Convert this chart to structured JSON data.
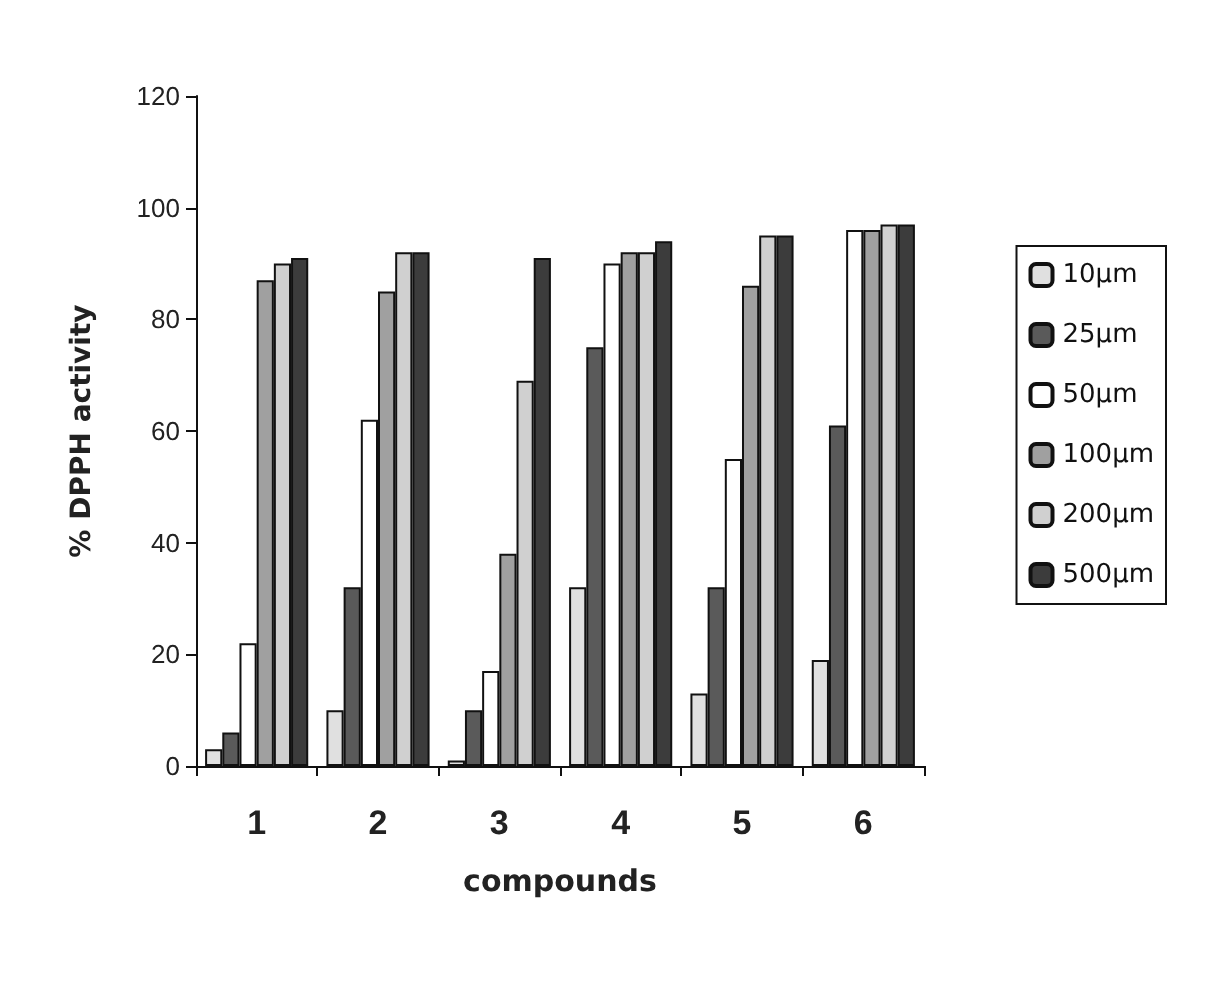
{
  "chart_data": {
    "type": "bar",
    "xlabel": "compounds",
    "ylabel": "% DPPH activity",
    "categories": [
      "1",
      "2",
      "3",
      "4",
      "5",
      "6"
    ],
    "series": [
      {
        "name": "10µm",
        "color": "#e0e0e0",
        "values": [
          3,
          10,
          1,
          32,
          13,
          19
        ]
      },
      {
        "name": "25µm",
        "color": "#5a5a5a",
        "values": [
          6,
          32,
          10,
          75,
          32,
          61
        ]
      },
      {
        "name": "50µm",
        "color": "#ffffff",
        "values": [
          22,
          62,
          17,
          90,
          55,
          96
        ]
      },
      {
        "name": "100µm",
        "color": "#a0a0a0",
        "values": [
          87,
          85,
          38,
          92,
          86,
          96
        ]
      },
      {
        "name": "200µm",
        "color": "#d0d0d0",
        "values": [
          90,
          92,
          69,
          92,
          95,
          97
        ]
      },
      {
        "name": "500µm",
        "color": "#3c3c3c",
        "values": [
          91,
          92,
          91,
          94,
          95,
          97
        ]
      }
    ],
    "ylim": [
      0,
      120
    ],
    "yticks": [
      0,
      20,
      40,
      60,
      80,
      100,
      120
    ],
    "grid": false,
    "legend": "right"
  }
}
